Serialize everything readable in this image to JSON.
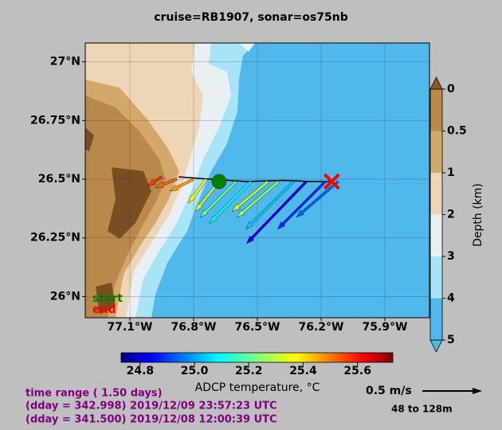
{
  "chart_data": {
    "type": "quiver",
    "title": "cruise=RB1907,   sonar=os75nb",
    "x": [
      -76.95,
      -76.88,
      -76.8,
      -76.74,
      -76.68,
      -76.6,
      -76.53,
      -76.45,
      -76.4,
      -76.33,
      -76.27,
      -76.18,
      -76.12
    ],
    "y": [
      26.51,
      26.5,
      26.5,
      26.5,
      26.49,
      26.49,
      26.49,
      26.49,
      26.49,
      26.49,
      26.49,
      26.49,
      26.49
    ],
    "u": [
      -0.12,
      -0.18,
      -0.2,
      -0.15,
      -0.2,
      -0.3,
      -0.35,
      -0.3,
      -0.35,
      -0.4,
      -0.5,
      -0.4,
      -0.35
    ],
    "v": [
      -0.08,
      -0.07,
      -0.1,
      -0.2,
      -0.25,
      -0.3,
      -0.35,
      -0.25,
      -0.3,
      -0.4,
      -0.52,
      -0.4,
      -0.3
    ],
    "temperature": [
      25.55,
      25.5,
      25.45,
      25.35,
      25.3,
      25.2,
      25.1,
      25.3,
      25.25,
      25.05,
      24.85,
      24.9,
      24.95
    ],
    "xlim": [
      -77.31,
      -75.69
    ],
    "ylim": [
      25.91,
      27.08
    ],
    "xticks": [
      {
        "value": -77.1,
        "label": "77.1°W"
      },
      {
        "value": -76.8,
        "label": "76.8°W"
      },
      {
        "value": -76.5,
        "label": "76.5°W"
      },
      {
        "value": -76.2,
        "label": "76.2°W"
      },
      {
        "value": -75.9,
        "label": "75.9°W"
      }
    ],
    "yticks": [
      {
        "value": 27,
        "label": "27°N"
      },
      {
        "value": 26.75,
        "label": "26.75°N"
      },
      {
        "value": 26.5,
        "label": "26.5°N"
      },
      {
        "value": 26.25,
        "label": "26.25°N"
      },
      {
        "value": 26,
        "label": "26°N"
      }
    ],
    "grid": true,
    "track": {
      "x": [
        -76.87,
        -76.72,
        -76.55,
        -76.38,
        -76.25,
        -76.15
      ],
      "y": [
        26.51,
        26.5,
        26.49,
        26.495,
        26.49,
        26.49
      ]
    },
    "start": {
      "label": "start",
      "x": -76.68,
      "y": 26.49,
      "color": "#008000"
    },
    "end": {
      "label": "end",
      "x": -76.15,
      "y": 26.49,
      "color": "#ff0000"
    },
    "colorbar": {
      "label": "ADCP temperature, °C",
      "lim": [
        24.73,
        25.73
      ],
      "ticks": [
        24.8,
        {
          "value": 25,
          "label": "25.0"
        },
        25.2,
        25.4,
        25.6
      ]
    },
    "depth_colorbar": {
      "label": "Depth (km)",
      "ticks": [
        0,
        0.5,
        1,
        2,
        3,
        4,
        5
      ],
      "colors": [
        "#b8894a",
        "#d4a86a",
        "#edd5b8",
        "#e8f0f4",
        "#a8e4f8",
        "#50b8ea"
      ],
      "over_color": "#8b5a2b",
      "under_color": "#50b8ea"
    },
    "reference_arrow": {
      "value": 0.5,
      "label": "0.5 m/s"
    },
    "depth_range": "48 to 128m",
    "time_range": "time range ( 1.50 days)",
    "time_end": "(dday = 342.998) 2019/12/09 23:57:23 UTC",
    "time_start": "(dday = 341.500) 2019/12/08 12:00:39 UTC"
  }
}
